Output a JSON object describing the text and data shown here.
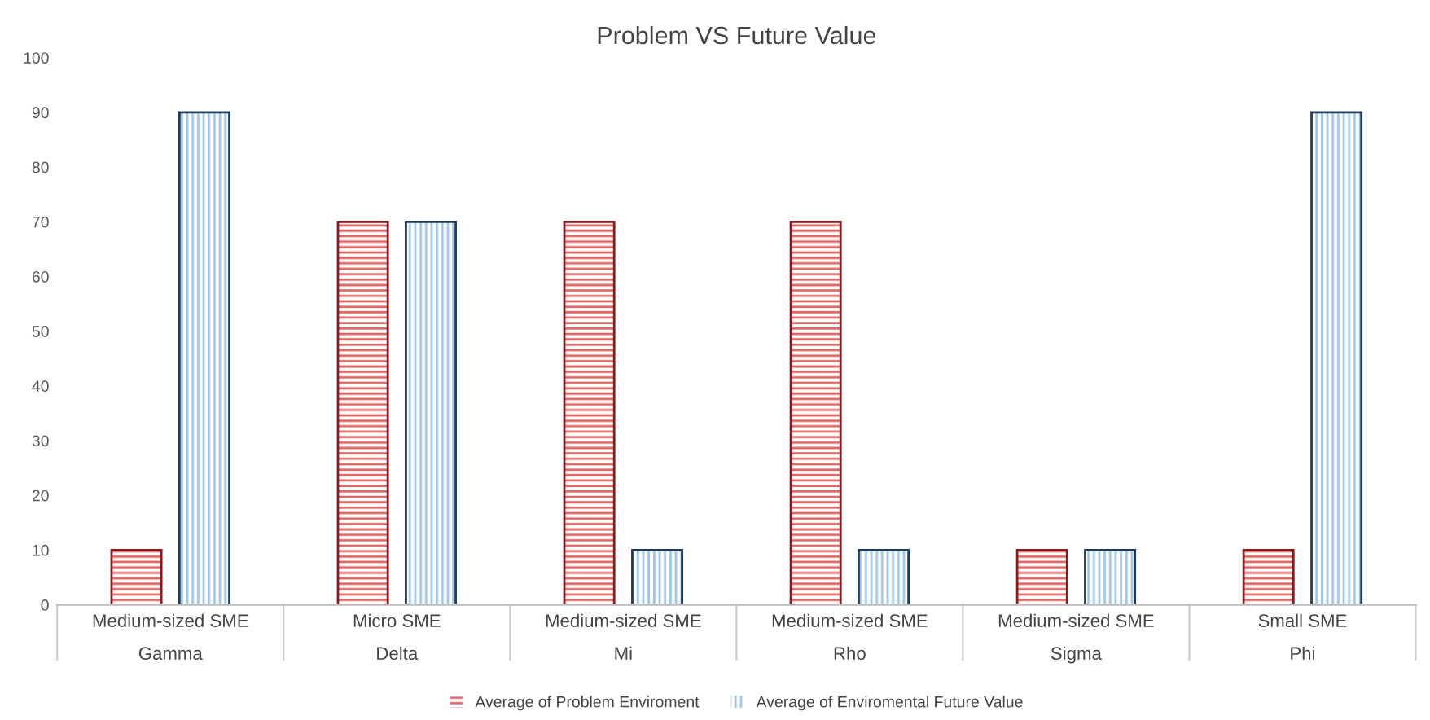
{
  "chart_data": {
    "type": "bar",
    "title": "Problem VS Future Value",
    "categories": [
      "Medium-sized SME\nGamma",
      "Micro SME\nDelta",
      "Medium-sized SME\nMi",
      "Medium-sized SME\nRho",
      "Medium-sized SME\nSigma",
      "Small SME\nPhi"
    ],
    "series": [
      {
        "name": "Average of Problem Enviroment",
        "color": "#e06666",
        "values": [
          10,
          70,
          70,
          70,
          10,
          10
        ]
      },
      {
        "name": "Average of Enviromental Future Value",
        "color": "#9fc5e8",
        "values": [
          90,
          70,
          10,
          10,
          10,
          90
        ]
      }
    ],
    "ylim": [
      0,
      100
    ],
    "yticks": [
      0,
      10,
      20,
      30,
      40,
      50,
      60,
      70,
      80,
      90,
      100
    ],
    "grid": false,
    "legend": "bottom"
  }
}
